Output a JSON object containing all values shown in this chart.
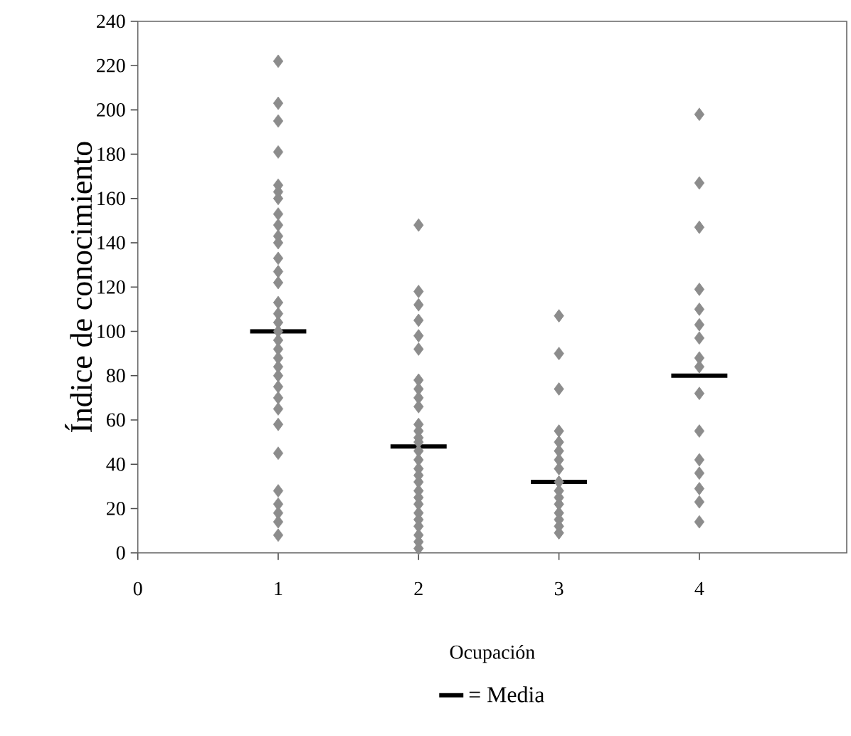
{
  "chart_data": {
    "type": "scatter",
    "xlabel": "Ocupación",
    "ylabel": "Índice de conocimiento",
    "xlim": [
      0,
      5.05
    ],
    "ylim": [
      0,
      240
    ],
    "xticks": [
      0,
      1,
      2,
      3,
      4
    ],
    "yticks": [
      0,
      20,
      40,
      60,
      80,
      100,
      120,
      140,
      160,
      180,
      200,
      220,
      240
    ],
    "legend": "bottom",
    "series": [
      {
        "marker": "diamond",
        "color": "#8c8c8c",
        "x": [
          1,
          1,
          1,
          1,
          1,
          1,
          1,
          1,
          1,
          1,
          1,
          1,
          1,
          1,
          1,
          1,
          1,
          1,
          1,
          1,
          1,
          1,
          1,
          1,
          1,
          1,
          1,
          1,
          1,
          1,
          1,
          1,
          1,
          2,
          2,
          2,
          2,
          2,
          2,
          2,
          2,
          2,
          2,
          2,
          2,
          2,
          2,
          2,
          2,
          2,
          2,
          2,
          2,
          2,
          2,
          2,
          2,
          2,
          2,
          2,
          2,
          3,
          3,
          3,
          3,
          3,
          3,
          3,
          3,
          3,
          3,
          3,
          3,
          3,
          3,
          3,
          3,
          4,
          4,
          4,
          4,
          4,
          4,
          4,
          4,
          4,
          4,
          4,
          4,
          4,
          4,
          4,
          4
        ],
        "values": [
          222,
          203,
          195,
          181,
          166,
          163,
          160,
          153,
          148,
          143,
          140,
          133,
          127,
          122,
          113,
          108,
          104,
          100,
          96,
          92,
          88,
          84,
          80,
          75,
          70,
          65,
          58,
          45,
          28,
          22,
          18,
          14,
          8,
          148,
          118,
          112,
          105,
          98,
          92,
          78,
          74,
          70,
          66,
          58,
          55,
          52,
          50,
          46,
          42,
          38,
          35,
          32,
          28,
          25,
          22,
          18,
          15,
          12,
          8,
          5,
          2,
          107,
          90,
          74,
          55,
          50,
          46,
          42,
          38,
          32,
          28,
          25,
          22,
          18,
          15,
          12,
          9,
          198,
          167,
          147,
          119,
          110,
          103,
          97,
          88,
          84,
          72,
          55,
          42,
          36,
          29,
          23,
          14
        ]
      },
      {
        "type": "line",
        "name": "= Media",
        "color": "#000000",
        "line_style": "solid",
        "x": [
          0.8,
          1.2,
          1.5,
          1.8,
          2.2,
          2.5,
          2.8,
          3.2,
          3.5,
          3.8,
          4.2
        ],
        "values": [
          100,
          100,
          null,
          48,
          48,
          null,
          32,
          32,
          null,
          80,
          80
        ]
      }
    ]
  }
}
